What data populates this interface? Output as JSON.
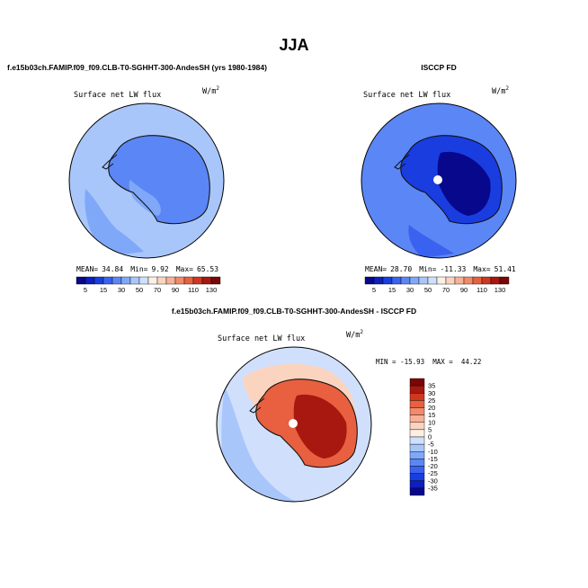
{
  "figure": {
    "title": "JJA",
    "panel1_header": "f.e15b03ch.FAMIP.f09_f09.CLB-T0-SGHHT-300-AndesSH (yrs 1980-1984)",
    "panel2_header": "ISCCP FD",
    "panel3_header": "f.e15b03ch.FAMIP.f09_f09.CLB-T0-SGHHT-300-AndesSH - ISCCP FD"
  },
  "colors": {
    "diverging_scale": [
      "#08088c",
      "#0d1fbf",
      "#1a3de0",
      "#3a62f0",
      "#5b86f5",
      "#80a8f8",
      "#a9c6fb",
      "#d0e0fc",
      "#fcefe4",
      "#fbd4c0",
      "#f7b196",
      "#f28a6a",
      "#e8603f",
      "#cf3720",
      "#a81810",
      "#7a0606"
    ],
    "anom_scale": [
      "#08088c",
      "#0d1fbf",
      "#1a3de0",
      "#3a62f0",
      "#5b86f5",
      "#80a8f8",
      "#a9c6fb",
      "#d0e0fc",
      "#fcefe4",
      "#fbd4c0",
      "#f7b196",
      "#f28a6a",
      "#e8603f",
      "#cf3720",
      "#a81810",
      "#7a0606"
    ]
  },
  "chart_data": [
    {
      "type": "heatmap",
      "projection": "south-polar-stereographic",
      "title": "Surface net LW flux",
      "units_base": "W/m",
      "units_exp": "2",
      "stats": {
        "mean_label": "MEAN=",
        "mean": "34.84",
        "min_label": "Min=",
        "min": "9.92",
        "max_label": "Max=",
        "max": "65.53"
      },
      "colorbar_ticks": [
        "5",
        "15",
        "30",
        "50",
        "70",
        "90",
        "110",
        "130"
      ],
      "colorbar_levels": [
        5,
        10,
        15,
        20,
        30,
        40,
        50,
        60,
        70,
        80,
        90,
        100,
        110,
        120,
        130
      ],
      "field": {
        "ocean_level": 6,
        "continent_level": 4,
        "interior_level": 5
      }
    },
    {
      "type": "heatmap",
      "projection": "south-polar-stereographic",
      "title": "Surface net LW flux",
      "units_base": "W/m",
      "units_exp": "2",
      "stats": {
        "mean_label": "MEAN=",
        "mean": "28.70",
        "min_label": "Min=",
        "min": "-11.33",
        "max_label": "Max=",
        "max": "51.41"
      },
      "colorbar_ticks": [
        "5",
        "15",
        "30",
        "50",
        "70",
        "90",
        "110",
        "130"
      ],
      "colorbar_levels": [
        5,
        10,
        15,
        20,
        30,
        40,
        50,
        60,
        70,
        80,
        90,
        100,
        110,
        120,
        130
      ],
      "field": {
        "ocean_level": 4,
        "continent_level": 2,
        "interior_level": 0
      }
    },
    {
      "type": "heatmap",
      "projection": "south-polar-stereographic",
      "title": "Surface net LW flux",
      "units_base": "W/m",
      "units_exp": "2",
      "stats_text": "MIN = -15.93  MAX =  44.22",
      "colorbar_ticks": [
        "35",
        "30",
        "25",
        "20",
        "15",
        "10",
        "5",
        "0",
        "-5",
        "-10",
        "-15",
        "-20",
        "-25",
        "-30",
        "-35"
      ],
      "field": {
        "ocean_level": 7,
        "continent_level": 12,
        "interior_level": 14
      }
    }
  ]
}
